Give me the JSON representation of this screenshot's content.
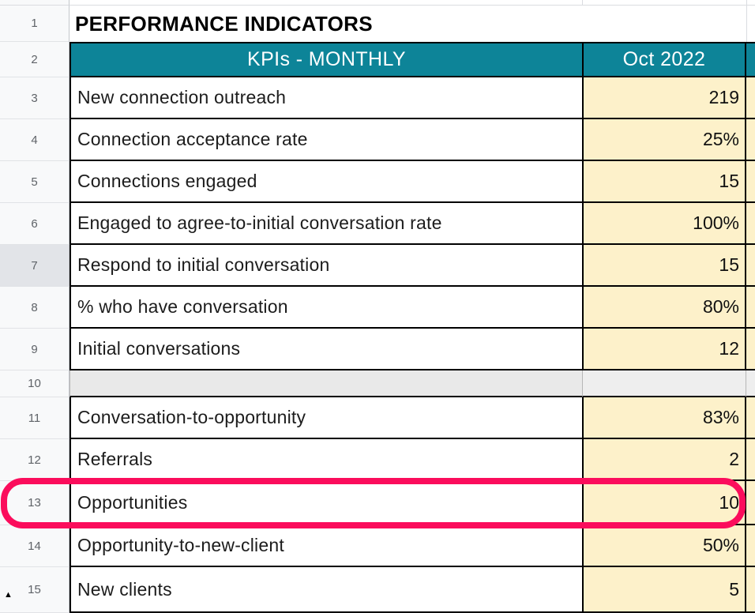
{
  "sheet": {
    "title_row": {
      "num": "1",
      "text": "PERFORMANCE INDICATORS"
    },
    "header_row": {
      "num": "2",
      "label": "KPIs - MONTHLY",
      "value_col": "Oct 2022"
    },
    "rows": [
      {
        "num": "3",
        "label": "New connection outreach",
        "value": "219"
      },
      {
        "num": "4",
        "label": "Connection acceptance rate",
        "value": "25%"
      },
      {
        "num": "5",
        "label": "Connections engaged",
        "value": "15"
      },
      {
        "num": "6",
        "label": "Engaged to agree-to-initial conversation rate",
        "value": "100%"
      },
      {
        "num": "7",
        "label": "Respond to initial conversation",
        "value": "15"
      },
      {
        "num": "8",
        "label": "% who have conversation",
        "value": "80%"
      },
      {
        "num": "9",
        "label": "Initial conversations",
        "value": "12"
      },
      {
        "num": "10",
        "label": "",
        "value": ""
      },
      {
        "num": "11",
        "label": "Conversation-to-opportunity",
        "value": "83%"
      },
      {
        "num": "12",
        "label": "Referrals",
        "value": "2"
      },
      {
        "num": "13",
        "label": "Opportunities",
        "value": "10",
        "highlighted": true
      },
      {
        "num": "14",
        "label": "Opportunity-to-new-client",
        "value": "50%"
      },
      {
        "num": "15",
        "label": "New clients",
        "value": "5"
      }
    ],
    "indicators": {
      "hidden_rows_arrow": "▲"
    },
    "colors": {
      "header_teal": "#0d8498",
      "value_cell_bg": "#fdf1ca",
      "spacer_row_bg": "#e9e9e9",
      "highlight_pink": "#fb0d5c",
      "gutter_bg": "#f8f9fa",
      "gutter_active_bg": "#e2e4e8",
      "row_number_text": "#5f6368",
      "cell_border": "#000000",
      "gridline": "#dadce0"
    }
  }
}
